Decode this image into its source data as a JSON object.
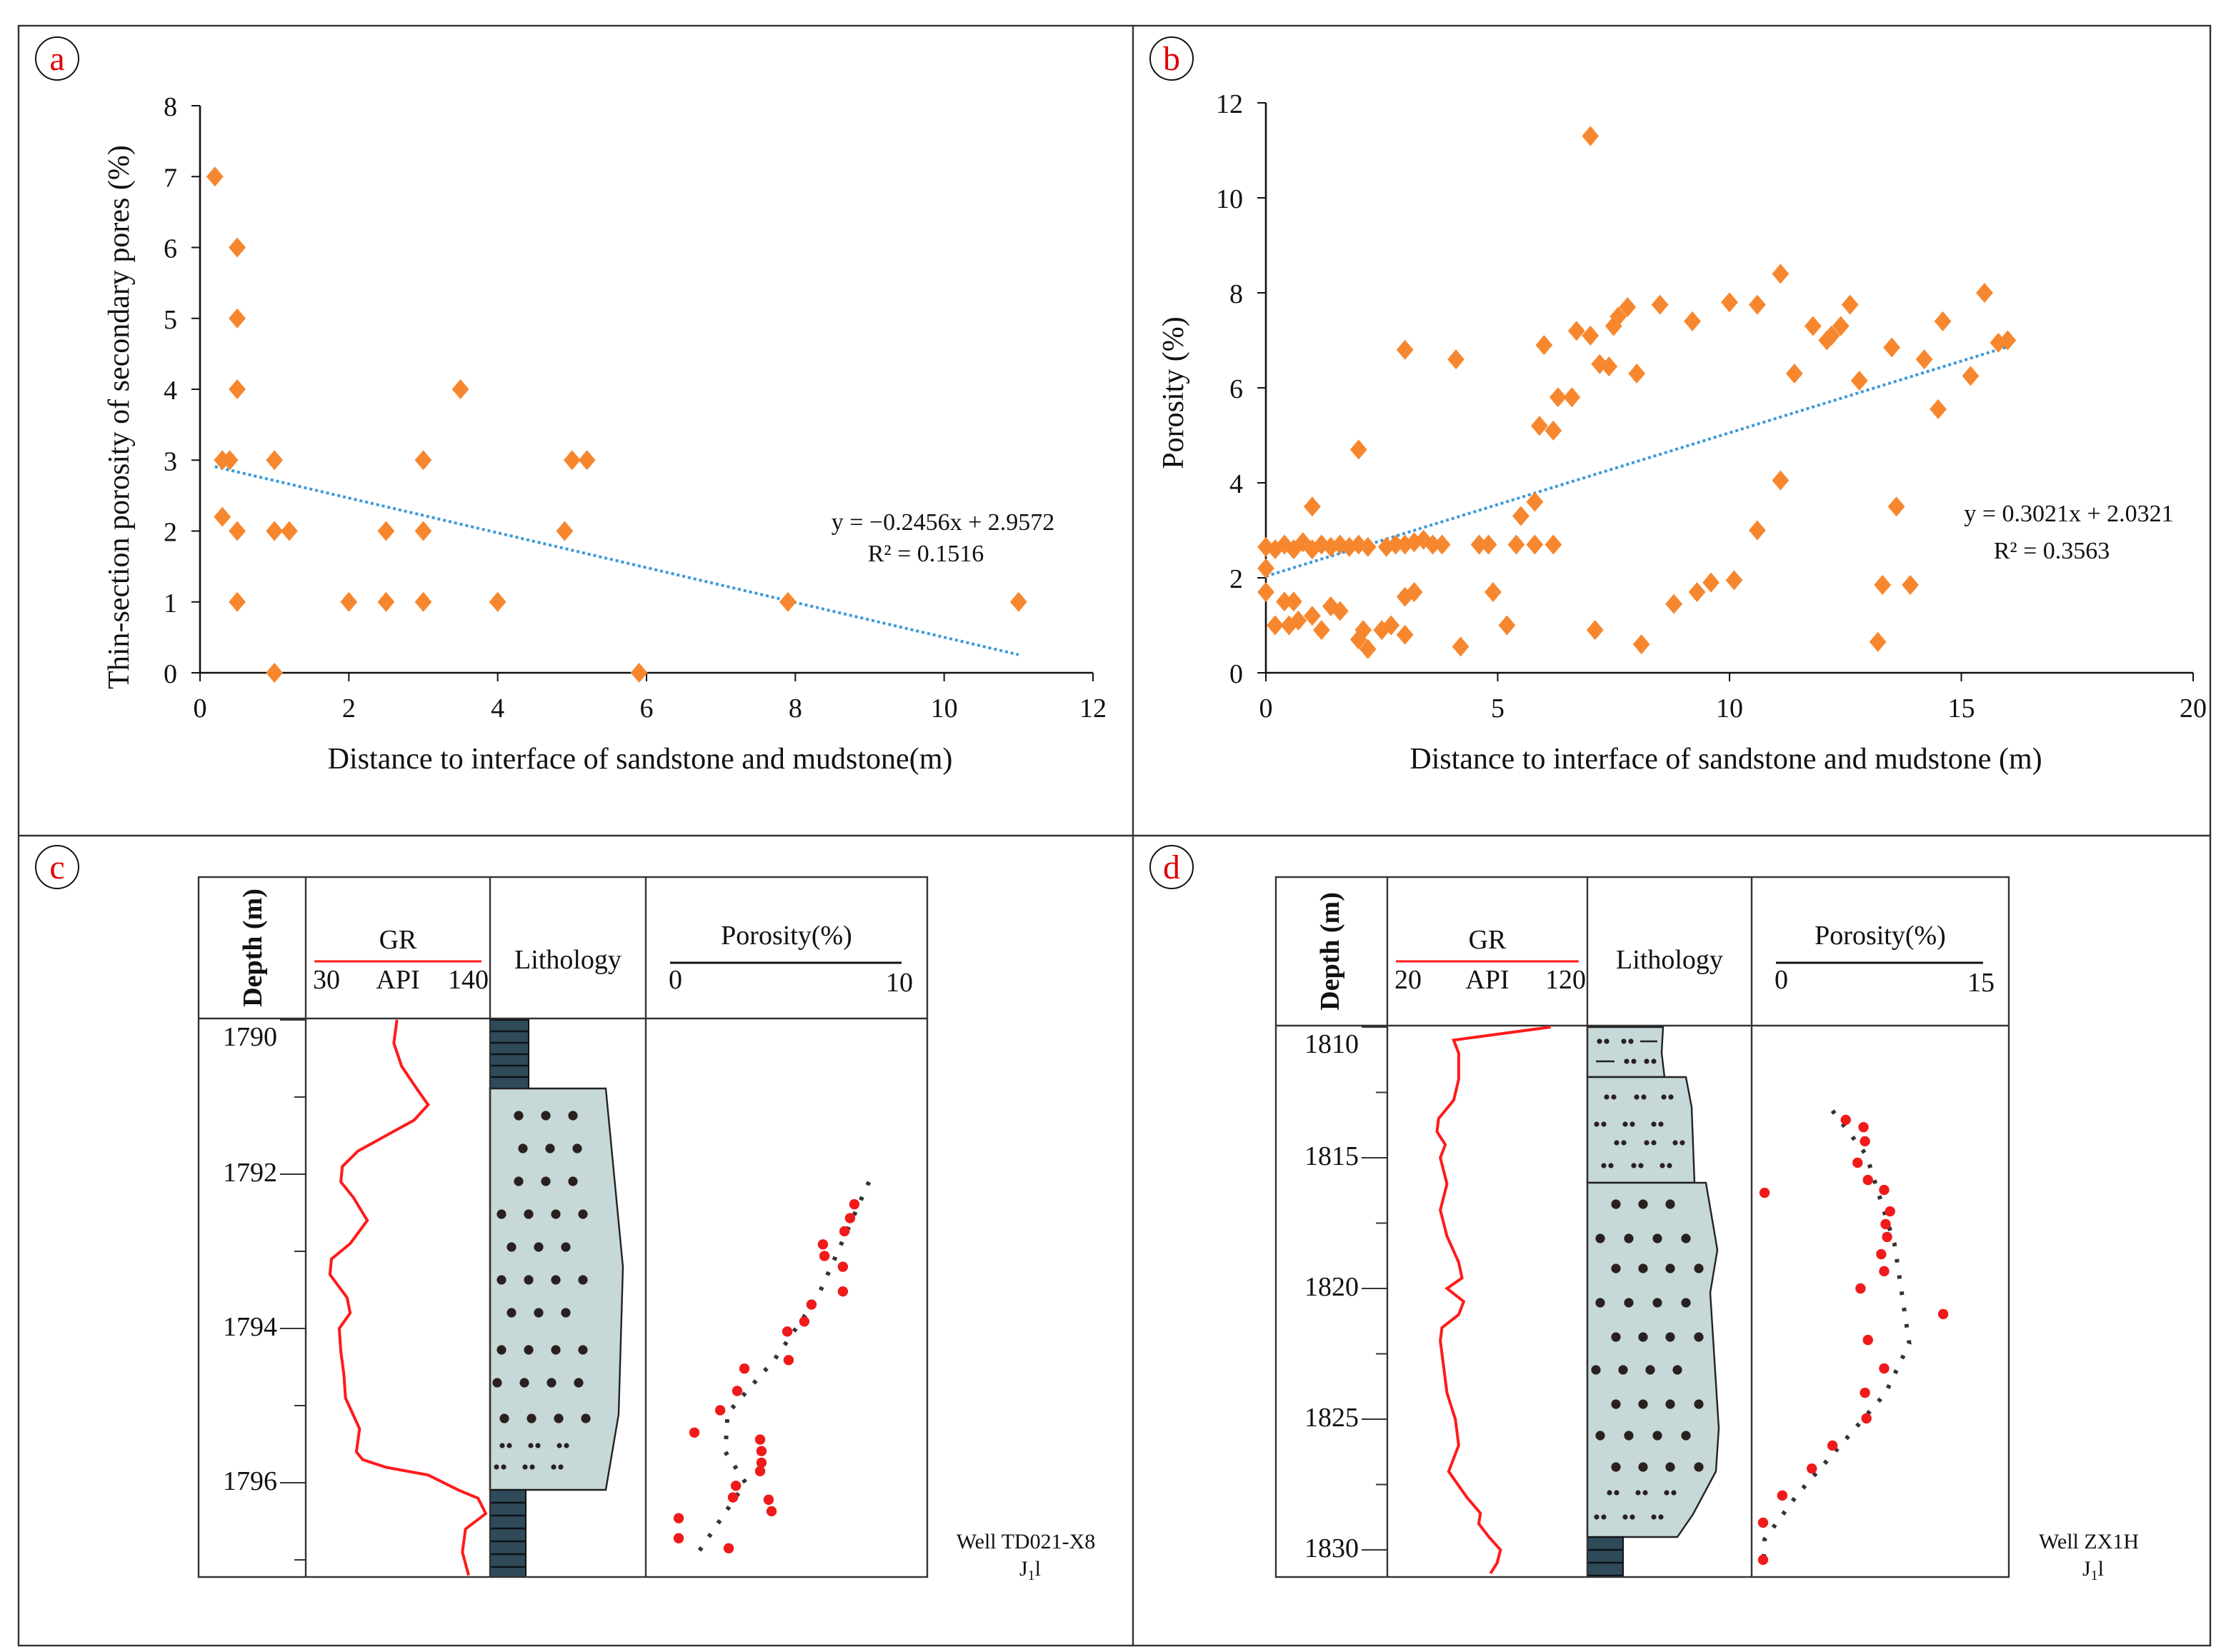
{
  "colors": {
    "marker": "#f7872e",
    "trend": "#3a9ad9",
    "gr_curve": "#ff1a1a",
    "porosity_point": "#f01a1a",
    "sandstone_fill": "#c6d8d8",
    "mudstone_fill": "#2f4a59",
    "panel_label": "#e00000"
  },
  "chart_data": [
    {
      "panel": "a",
      "type": "scatter",
      "xlabel": "Distance to interface of sandstone and mudstone(m)",
      "ylabel": "Thin-section porosity of secondary pores (%)",
      "xlim": [
        0,
        12
      ],
      "ylim": [
        0,
        8
      ],
      "xticks": [
        "0",
        "2",
        "4",
        "6",
        "8",
        "10",
        "12"
      ],
      "yticks": [
        "0",
        "1",
        "2",
        "3",
        "4",
        "5",
        "6",
        "7",
        "8"
      ],
      "points": [
        [
          0.2,
          7
        ],
        [
          0.5,
          6
        ],
        [
          0.5,
          5
        ],
        [
          0.5,
          4
        ],
        [
          0.3,
          3
        ],
        [
          0.4,
          3
        ],
        [
          1,
          3
        ],
        [
          0.3,
          2.2
        ],
        [
          0.5,
          2
        ],
        [
          1,
          2
        ],
        [
          1.2,
          2
        ],
        [
          0.5,
          1
        ],
        [
          1,
          0
        ],
        [
          2,
          1
        ],
        [
          2.5,
          2
        ],
        [
          2.5,
          1
        ],
        [
          3,
          3
        ],
        [
          3,
          2
        ],
        [
          3,
          1
        ],
        [
          3.5,
          4
        ],
        [
          4,
          1
        ],
        [
          4.9,
          2
        ],
        [
          5,
          3
        ],
        [
          5.2,
          3
        ],
        [
          5.9,
          0
        ],
        [
          7.9,
          1
        ],
        [
          11,
          1
        ]
      ],
      "trendline": {
        "slope": -0.2456,
        "intercept": 2.9572,
        "x_range": [
          0.2,
          11
        ]
      },
      "equation": "y = −0.2456x + 2.9572",
      "r2": "R² = 0.1516"
    },
    {
      "panel": "b",
      "type": "scatter",
      "xlabel": "Distance to interface of sandstone and mudstone (m)",
      "ylabel": "Porosity (%)",
      "xlim": [
        0,
        20
      ],
      "ylim": [
        0,
        12
      ],
      "xticks": [
        "0",
        "5",
        "10",
        "15",
        "20"
      ],
      "yticks": [
        "0",
        "2",
        "4",
        "6",
        "8",
        "10",
        "12"
      ],
      "points": [
        [
          0,
          2.65
        ],
        [
          0.2,
          2.6
        ],
        [
          0.4,
          2.7
        ],
        [
          0.6,
          2.6
        ],
        [
          0.8,
          2.75
        ],
        [
          1,
          2.6
        ],
        [
          1.2,
          2.7
        ],
        [
          1.4,
          2.65
        ],
        [
          1.6,
          2.7
        ],
        [
          1.8,
          2.65
        ],
        [
          2,
          2.7
        ],
        [
          2.2,
          2.65
        ],
        [
          2.6,
          2.65
        ],
        [
          2.8,
          2.7
        ],
        [
          3,
          2.7
        ],
        [
          3.2,
          2.75
        ],
        [
          3.4,
          2.8
        ],
        [
          3.6,
          2.7
        ],
        [
          3.8,
          2.7
        ],
        [
          4.6,
          2.7
        ],
        [
          4.8,
          2.7
        ],
        [
          5.4,
          2.7
        ],
        [
          5.8,
          2.7
        ],
        [
          6.2,
          2.7
        ],
        [
          0,
          2.2
        ],
        [
          0,
          1.7
        ],
        [
          0.4,
          1.5
        ],
        [
          0.6,
          1.5
        ],
        [
          0.2,
          1
        ],
        [
          0.5,
          1
        ],
        [
          0.7,
          1.1
        ],
        [
          1,
          1.2
        ],
        [
          1.2,
          0.9
        ],
        [
          1.4,
          1.4
        ],
        [
          1.6,
          1.3
        ],
        [
          2,
          0.7
        ],
        [
          2.1,
          0.9
        ],
        [
          2.2,
          0.5
        ],
        [
          2.5,
          0.9
        ],
        [
          2.7,
          1
        ],
        [
          3,
          0.8
        ],
        [
          3,
          1.6
        ],
        [
          3.2,
          1.7
        ],
        [
          1,
          3.5
        ],
        [
          2,
          4.7
        ],
        [
          3,
          6.8
        ],
        [
          4.1,
          6.6
        ],
        [
          4.2,
          0.55
        ],
        [
          4.9,
          1.7
        ],
        [
          5.2,
          1
        ],
        [
          5.5,
          3.3
        ],
        [
          5.8,
          3.6
        ],
        [
          5.9,
          5.2
        ],
        [
          6.2,
          5.1
        ],
        [
          6,
          6.9
        ],
        [
          6.3,
          5.8
        ],
        [
          6.6,
          5.8
        ],
        [
          6.7,
          7.2
        ],
        [
          7,
          7.1
        ],
        [
          7,
          11.3
        ],
        [
          7.1,
          0.9
        ],
        [
          7.2,
          6.5
        ],
        [
          7.4,
          6.45
        ],
        [
          7.5,
          7.3
        ],
        [
          7.6,
          7.5
        ],
        [
          7.8,
          7.7
        ],
        [
          8,
          6.3
        ],
        [
          8.1,
          0.6
        ],
        [
          8.5,
          7.75
        ],
        [
          8.8,
          1.45
        ],
        [
          9.2,
          7.4
        ],
        [
          9.3,
          1.7
        ],
        [
          9.6,
          1.9
        ],
        [
          10,
          7.8
        ],
        [
          10.1,
          1.95
        ],
        [
          10.6,
          7.75
        ],
        [
          10.6,
          3
        ],
        [
          11.1,
          8.4
        ],
        [
          11.1,
          4.05
        ],
        [
          11.4,
          6.3
        ],
        [
          11.8,
          7.3
        ],
        [
          12.1,
          7
        ],
        [
          12.2,
          7.1
        ],
        [
          12.4,
          7.3
        ],
        [
          12.6,
          7.75
        ],
        [
          12.8,
          6.15
        ],
        [
          13.2,
          0.65
        ],
        [
          13.3,
          1.85
        ],
        [
          13.5,
          6.85
        ],
        [
          13.6,
          3.5
        ],
        [
          13.9,
          1.85
        ],
        [
          14.2,
          6.6
        ],
        [
          14.5,
          5.55
        ],
        [
          14.6,
          7.4
        ],
        [
          15.2,
          6.25
        ],
        [
          15.5,
          8
        ],
        [
          15.8,
          6.95
        ],
        [
          16,
          7
        ]
      ],
      "trendline": {
        "slope": 0.3021,
        "intercept": 2.0321,
        "x_range": [
          0,
          16
        ]
      },
      "equation": "y = 0.3021x + 2.0321",
      "r2": "R² = 0.3563"
    },
    {
      "panel": "c",
      "type": "line",
      "well": "Well  TD021-X8",
      "formation": {
        "main": "J",
        "sub": "1",
        "suffix": "l"
      },
      "headers": {
        "depth": "Depth (m)",
        "gr": "GR",
        "gr_unit": "API",
        "lithology": "Lithology",
        "porosity": "Porosity(%)"
      },
      "depth_range": [
        1790,
        1797.2
      ],
      "depth_ticks": [
        "1790",
        "1792",
        "1794",
        "1796"
      ],
      "gr_scale": [
        "30",
        "140"
      ],
      "gr_range": [
        30,
        140
      ],
      "porosity_scale": [
        "0",
        "10"
      ],
      "porosity_range": [
        0,
        10
      ],
      "gr_curve": [
        [
          1790,
          83
        ],
        [
          1790.3,
          81
        ],
        [
          1790.6,
          86
        ],
        [
          1790.9,
          96
        ],
        [
          1791.1,
          103
        ],
        [
          1791.3,
          94
        ],
        [
          1791.5,
          76
        ],
        [
          1791.7,
          58
        ],
        [
          1791.9,
          48
        ],
        [
          1792.1,
          47
        ],
        [
          1792.3,
          55
        ],
        [
          1792.6,
          64
        ],
        [
          1792.9,
          53
        ],
        [
          1793.1,
          41
        ],
        [
          1793.3,
          40
        ],
        [
          1793.6,
          51
        ],
        [
          1793.8,
          53
        ],
        [
          1794,
          46
        ],
        [
          1794.3,
          47
        ],
        [
          1794.6,
          49
        ],
        [
          1794.9,
          50
        ],
        [
          1795.3,
          59
        ],
        [
          1795.6,
          57
        ],
        [
          1795.7,
          61
        ],
        [
          1795.8,
          76
        ],
        [
          1795.9,
          103
        ],
        [
          1796.1,
          123
        ],
        [
          1796.2,
          135
        ],
        [
          1796.4,
          140
        ],
        [
          1796.6,
          127
        ],
        [
          1796.9,
          125
        ],
        [
          1797.2,
          129
        ]
      ],
      "porosity_points": [
        [
          1792.39,
          8.15
        ],
        [
          1792.57,
          7.96
        ],
        [
          1792.74,
          7.71
        ],
        [
          1792.91,
          6.75
        ],
        [
          1793.06,
          6.82
        ],
        [
          1793.2,
          7.64
        ],
        [
          1793.52,
          7.64
        ],
        [
          1793.69,
          6.24
        ],
        [
          1793.91,
          5.92
        ],
        [
          1794.04,
          5.16
        ],
        [
          1794.41,
          5.22
        ],
        [
          1794.52,
          3.25
        ],
        [
          1794.81,
          2.93
        ],
        [
          1795.06,
          2.17
        ],
        [
          1795.35,
          1.02
        ],
        [
          1795.44,
          3.95
        ],
        [
          1795.59,
          4.01
        ],
        [
          1795.74,
          4.01
        ],
        [
          1795.85,
          3.95
        ],
        [
          1796.04,
          2.87
        ],
        [
          1796.19,
          2.74
        ],
        [
          1796.22,
          4.33
        ],
        [
          1796.37,
          4.46
        ],
        [
          1796.46,
          0.32
        ],
        [
          1796.72,
          0.32
        ],
        [
          1796.85,
          2.55
        ]
      ],
      "porosity_trend": [
        [
          1792.1,
          8.8
        ],
        [
          1793.6,
          6.5
        ],
        [
          1794.4,
          4.6
        ],
        [
          1795.1,
          2.5
        ],
        [
          1795.6,
          2.4
        ],
        [
          1796.0,
          3.3
        ],
        [
          1796.9,
          1.2
        ]
      ]
    },
    {
      "panel": "d",
      "type": "line",
      "well": "Well  ZX1H",
      "formation": {
        "main": "J",
        "sub": "1",
        "suffix": "l"
      },
      "headers": {
        "depth": "Depth (m)",
        "gr": "GR",
        "gr_unit": "API",
        "lithology": "Lithology",
        "porosity": "Porosity(%)"
      },
      "depth_range": [
        1810,
        1831
      ],
      "depth_ticks": [
        "1810",
        "1815",
        "1820",
        "1825",
        "1830"
      ],
      "gr_scale": [
        "20",
        "120"
      ],
      "gr_range": [
        20,
        120
      ],
      "porosity_scale": [
        "0",
        "15"
      ],
      "porosity_range": [
        0,
        15
      ],
      "gr_curve": [
        [
          1810,
          110
        ],
        [
          1810.5,
          52
        ],
        [
          1811,
          55
        ],
        [
          1812,
          55
        ],
        [
          1812.8,
          52
        ],
        [
          1813.5,
          43
        ],
        [
          1814,
          42
        ],
        [
          1814.5,
          47
        ],
        [
          1815,
          44
        ],
        [
          1816,
          48
        ],
        [
          1817,
          44
        ],
        [
          1818,
          48
        ],
        [
          1819,
          55
        ],
        [
          1819.6,
          57
        ],
        [
          1820,
          48
        ],
        [
          1820.5,
          58
        ],
        [
          1821,
          55
        ],
        [
          1821.5,
          45
        ],
        [
          1822,
          44
        ],
        [
          1823,
          46
        ],
        [
          1824,
          48
        ],
        [
          1825,
          53
        ],
        [
          1826,
          55
        ],
        [
          1827,
          49
        ],
        [
          1828,
          60
        ],
        [
          1828.6,
          68
        ],
        [
          1829,
          67
        ],
        [
          1829.5,
          73
        ],
        [
          1830,
          80
        ],
        [
          1830.5,
          78
        ],
        [
          1830.9,
          74
        ]
      ],
      "porosity_points": [
        [
          1813.55,
          5.6
        ],
        [
          1813.83,
          6.8
        ],
        [
          1814.37,
          6.9
        ],
        [
          1815.19,
          6.4
        ],
        [
          1815.85,
          7.1
        ],
        [
          1816.23,
          8.2
        ],
        [
          1816.34,
          0.1
        ],
        [
          1817.05,
          8.6
        ],
        [
          1817.54,
          8.3
        ],
        [
          1818.03,
          8.4
        ],
        [
          1818.69,
          8.0
        ],
        [
          1819.34,
          8.2
        ],
        [
          1820.0,
          6.6
        ],
        [
          1820.98,
          12.2
        ],
        [
          1821.97,
          7.1
        ],
        [
          1823.06,
          8.2
        ],
        [
          1823.99,
          6.9
        ],
        [
          1824.97,
          7.0
        ],
        [
          1826.01,
          4.7
        ],
        [
          1826.89,
          3.3
        ],
        [
          1827.92,
          1.3
        ],
        [
          1828.96,
          0
        ],
        [
          1830.38,
          0
        ]
      ],
      "porosity_trend": [
        [
          1813.2,
          4.7
        ],
        [
          1814.9,
          7.0
        ],
        [
          1818.3,
          8.9
        ],
        [
          1822.1,
          9.9
        ],
        [
          1824.0,
          8.3
        ],
        [
          1825.9,
          5.4
        ],
        [
          1827.9,
          2.3
        ],
        [
          1829.6,
          0.1
        ],
        [
          1830.7,
          0
        ]
      ]
    }
  ]
}
